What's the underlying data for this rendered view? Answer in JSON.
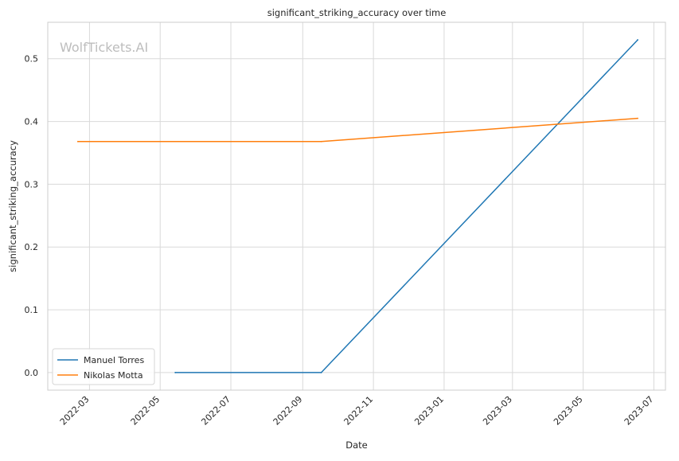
{
  "chart_data": {
    "type": "line",
    "title": "significant_striking_accuracy over time",
    "xlabel": "Date",
    "ylabel": "significant_striking_accuracy",
    "watermark": "WolfTickets.AI",
    "x_scale": "date",
    "xlim": [
      "2022-01-24",
      "2023-07-11"
    ],
    "ylim": [
      -0.028,
      0.558
    ],
    "x_ticks": [
      "2022-03",
      "2022-05",
      "2022-07",
      "2022-09",
      "2022-11",
      "2023-01",
      "2023-03",
      "2023-05",
      "2023-07"
    ],
    "y_ticks": [
      "0.0",
      "0.1",
      "0.2",
      "0.3",
      "0.4",
      "0.5"
    ],
    "grid": true,
    "legend_position": "lower-left",
    "series": [
      {
        "name": "Manuel Torres",
        "color": "#1f77b4",
        "x": [
          "2022-05-14",
          "2022-09-17",
          "2023-06-17"
        ],
        "y": [
          0.0,
          0.0,
          0.53
        ]
      },
      {
        "name": "Nikolas Motta",
        "color": "#ff7f0e",
        "x": [
          "2022-02-19",
          "2022-09-17",
          "2023-06-17"
        ],
        "y": [
          0.368,
          0.368,
          0.405
        ]
      }
    ]
  }
}
